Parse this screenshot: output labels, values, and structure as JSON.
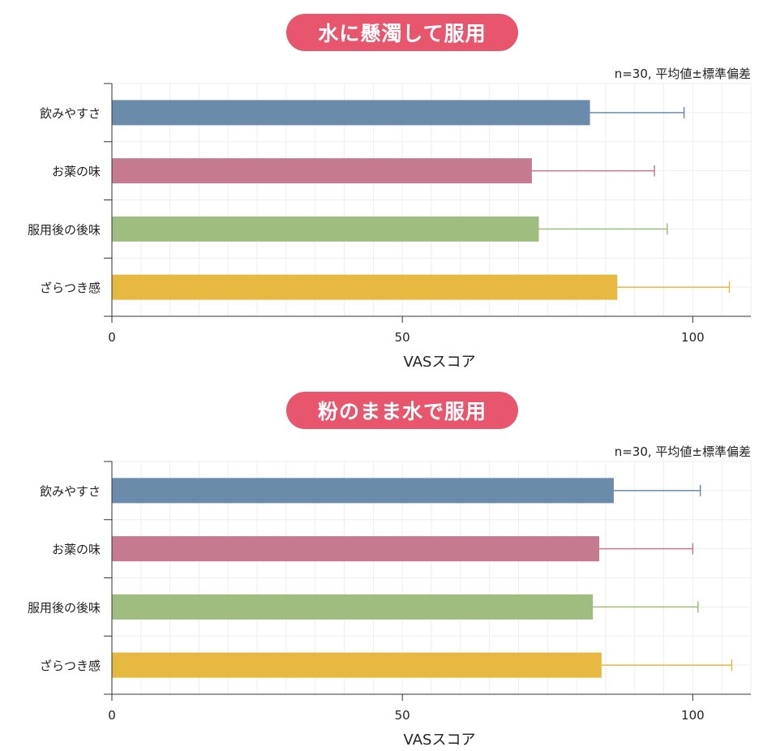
{
  "colors": {
    "pill": "#e8566d",
    "series": [
      "#6a8caa",
      "#c57a8f",
      "#9ebd7e",
      "#e7b941"
    ],
    "axis": "#333333",
    "grid": "#eeeeee"
  },
  "chart_data": [
    {
      "type": "bar",
      "orientation": "horizontal",
      "title": "水に懸濁して服用",
      "note": "n=30, 平均値±標準偏差",
      "xlabel": "VASスコア",
      "xlim": [
        0,
        110
      ],
      "xticks": [
        0,
        50,
        100
      ],
      "grid": true,
      "error_bars": "mean ± SD",
      "categories": [
        "飲みやすさ",
        "お薬の味",
        "服用後の後味",
        "ざらつき感"
      ],
      "values": [
        82.3,
        72.3,
        73.5,
        87.0
      ],
      "errors": [
        16.2,
        21.1,
        22.1,
        19.3
      ]
    },
    {
      "type": "bar",
      "orientation": "horizontal",
      "title": "粉のまま水で服用",
      "note": "n=30, 平均値±標準偏差",
      "xlabel": "VASスコア",
      "xlim": [
        0,
        110
      ],
      "xticks": [
        0,
        50,
        100
      ],
      "grid": true,
      "error_bars": "mean ± SD",
      "categories": [
        "飲みやすさ",
        "お薬の味",
        "服用後の後味",
        "ざらつき感"
      ],
      "values": [
        86.4,
        83.9,
        82.8,
        84.3
      ],
      "errors": [
        14.9,
        16.1,
        18.1,
        22.4
      ]
    }
  ]
}
